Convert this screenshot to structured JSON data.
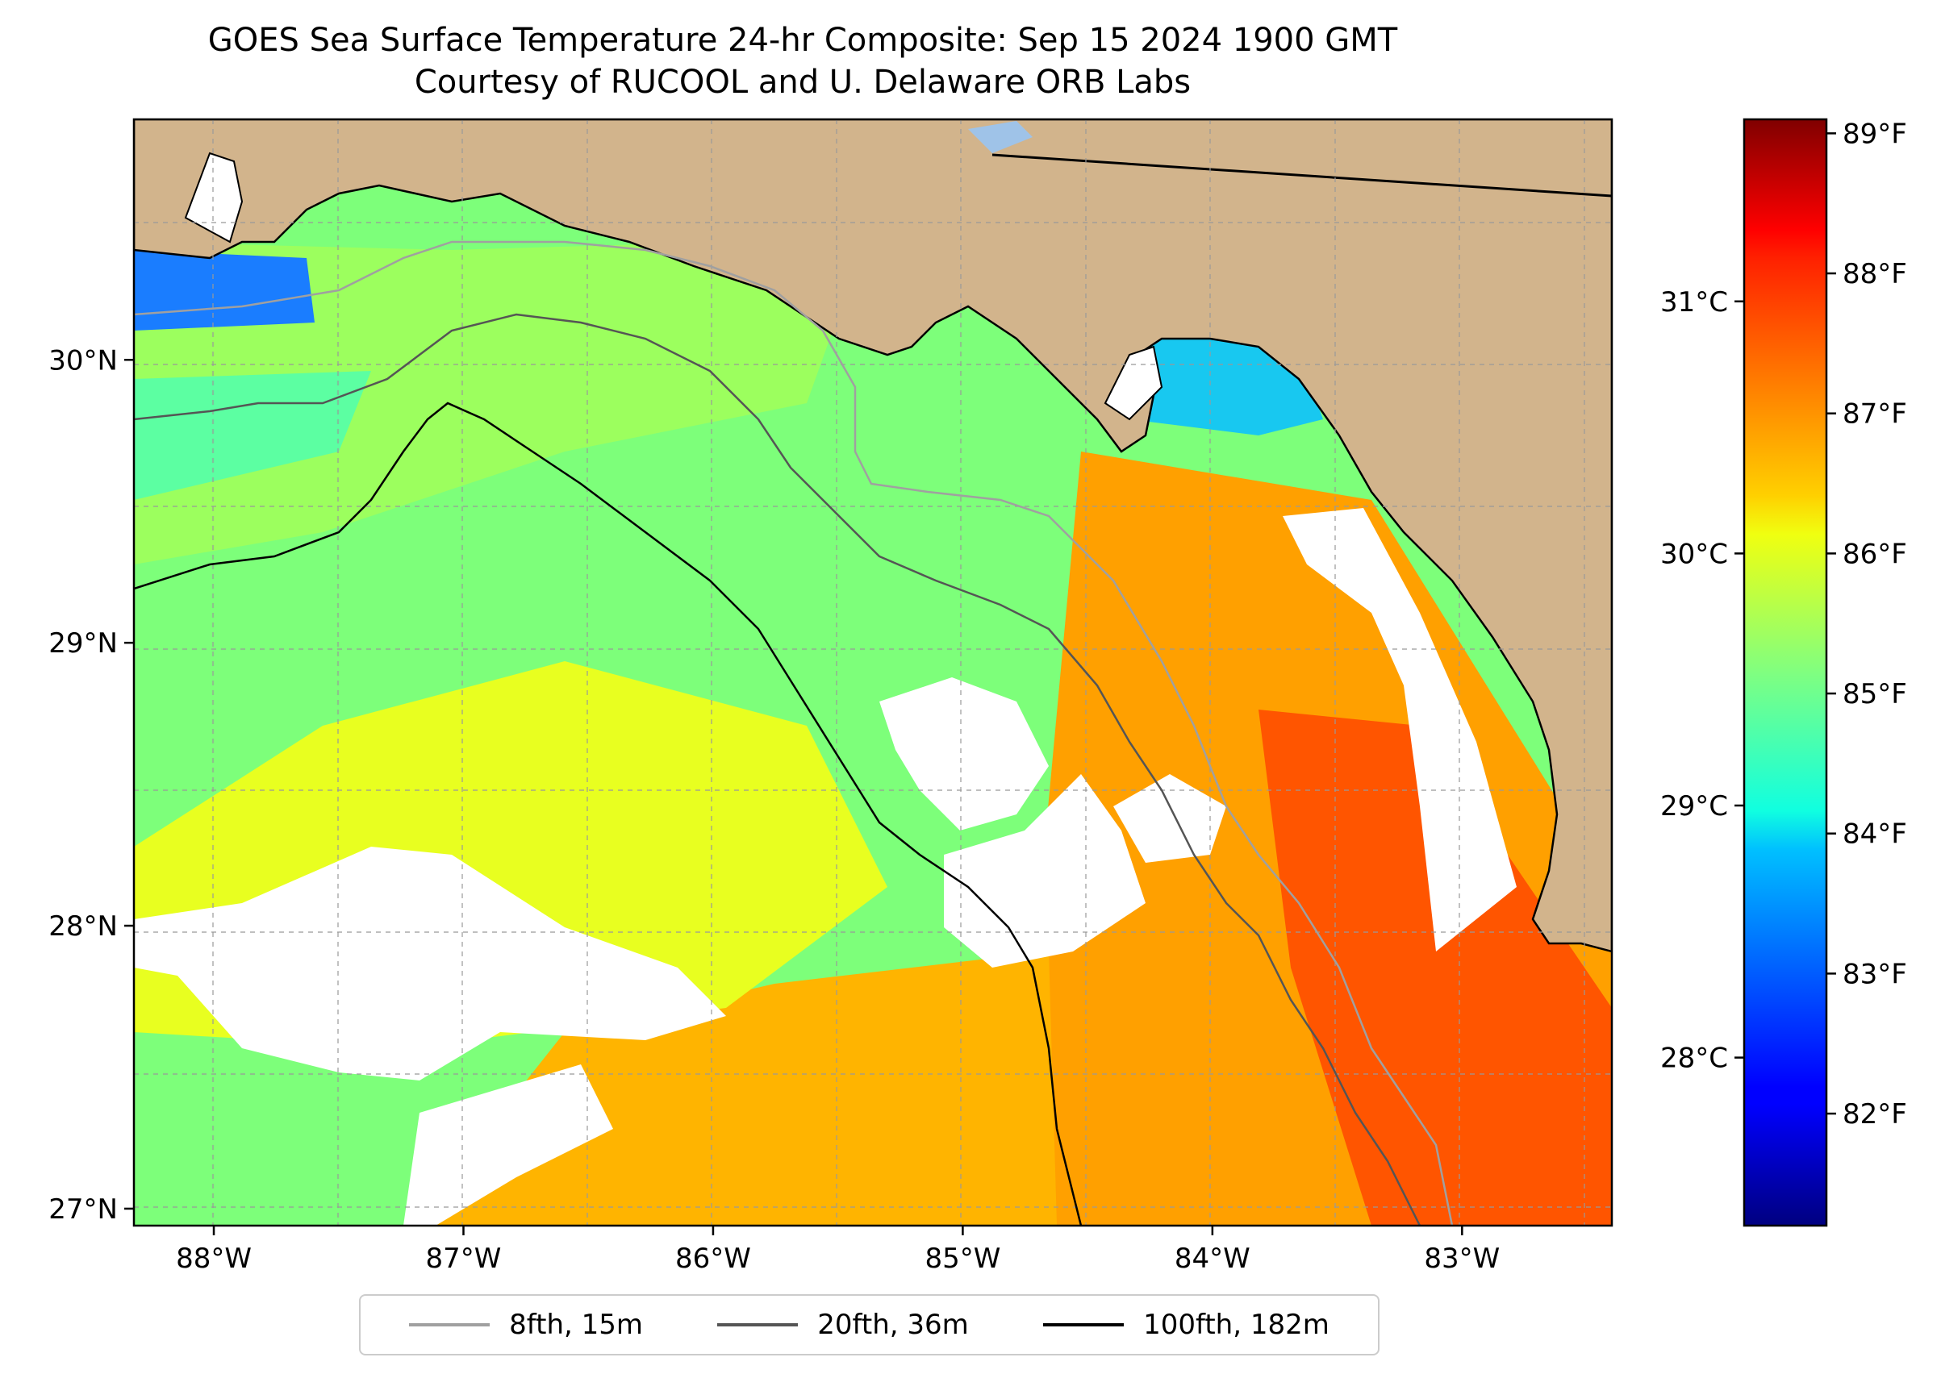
{
  "title": {
    "line1": "GOES Sea Surface Temperature 24-hr Composite: Sep 15 2024 1900 GMT",
    "line2": "Courtesy of RUCOOL and U. Delaware ORB Labs"
  },
  "map": {
    "lon_range": [
      -88.32,
      -82.4
    ],
    "lat_range": [
      26.94,
      30.85
    ],
    "lon_ticks": [
      {
        "value": -88,
        "label": "88°W"
      },
      {
        "value": -87,
        "label": "87°W"
      },
      {
        "value": -86,
        "label": "86°W"
      },
      {
        "value": -85,
        "label": "85°W"
      },
      {
        "value": -84,
        "label": "84°W"
      },
      {
        "value": -83,
        "label": "83°W"
      }
    ],
    "lat_ticks": [
      {
        "value": 27,
        "label": "27°N"
      },
      {
        "value": 28,
        "label": "28°N"
      },
      {
        "value": 29,
        "label": "29°N"
      },
      {
        "value": 30,
        "label": "30°N"
      }
    ],
    "gridlines": "dashed",
    "colors": {
      "land": "#d2b48c",
      "water_inland": "#9fc3e8",
      "cloud_nodata": "#ffffff"
    }
  },
  "colorbar": {
    "colormap": "jet",
    "f_range": [
      81.2,
      89.1
    ],
    "celsius_ticks": [
      {
        "value": 28,
        "label": "28°C"
      },
      {
        "value": 29,
        "label": "29°C"
      },
      {
        "value": 30,
        "label": "30°C"
      },
      {
        "value": 31,
        "label": "31°C"
      }
    ],
    "fahrenheit_ticks": [
      {
        "value": 82,
        "label": "82°F"
      },
      {
        "value": 83,
        "label": "83°F"
      },
      {
        "value": 84,
        "label": "84°F"
      },
      {
        "value": 85,
        "label": "85°F"
      },
      {
        "value": 86,
        "label": "86°F"
      },
      {
        "value": 87,
        "label": "87°F"
      },
      {
        "value": 88,
        "label": "88°F"
      },
      {
        "value": 89,
        "label": "89°F"
      }
    ]
  },
  "legend": {
    "location": "bottom-center",
    "items": [
      {
        "label": "8fth, 15m",
        "color": "#a0a0a0"
      },
      {
        "label": "20fth, 36m",
        "color": "#555555"
      },
      {
        "label": "100fth, 182m",
        "color": "#000000"
      }
    ]
  }
}
